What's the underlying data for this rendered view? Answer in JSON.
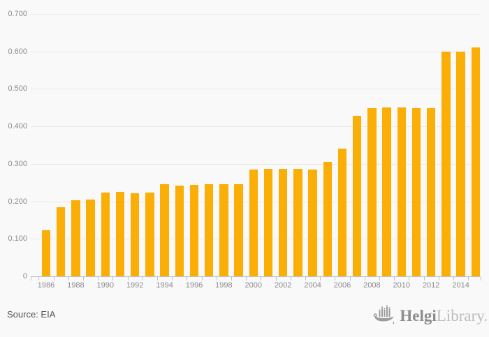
{
  "chart_data": {
    "type": "bar",
    "title": "",
    "xlabel": "",
    "ylabel": "",
    "categories": [
      "1986",
      "1987",
      "1988",
      "1989",
      "1990",
      "1991",
      "1992",
      "1993",
      "1994",
      "1995",
      "1996",
      "1997",
      "1998",
      "1999",
      "2000",
      "2001",
      "2002",
      "2003",
      "2004",
      "2005",
      "2006",
      "2007",
      "2008",
      "2009",
      "2010",
      "2011",
      "2012",
      "2013",
      "2014",
      "2015"
    ],
    "values": [
      0.122,
      0.184,
      0.203,
      0.205,
      0.223,
      0.225,
      0.222,
      0.224,
      0.246,
      0.242,
      0.244,
      0.245,
      0.245,
      0.245,
      0.285,
      0.287,
      0.287,
      0.287,
      0.285,
      0.306,
      0.34,
      0.428,
      0.449,
      0.45,
      0.45,
      0.448,
      0.448,
      0.599,
      0.6,
      0.611
    ],
    "ylim": [
      0,
      0.7
    ],
    "yticks": [
      {
        "label": "0.700",
        "value": 0.7
      },
      {
        "label": "0.600",
        "value": 0.6
      },
      {
        "label": "0.500",
        "value": 0.5
      },
      {
        "label": "0.400",
        "value": 0.4
      },
      {
        "label": "0.300",
        "value": 0.3
      },
      {
        "label": "0.200",
        "value": 0.2
      },
      {
        "label": "0.100",
        "value": 0.1
      },
      {
        "label": "0",
        "value": 0
      }
    ],
    "xtick_labels": [
      "1986",
      "1988",
      "1990",
      "1992",
      "1994",
      "1996",
      "1998",
      "2000",
      "2002",
      "2004",
      "2006",
      "2008",
      "2010",
      "2012",
      "2014"
    ],
    "grid": true,
    "legend": "none",
    "bar_color": "#faae06"
  },
  "footer": {
    "source_label": "Source: EIA"
  },
  "branding": {
    "logo_text_primary": "Helgi",
    "logo_text_secondary": "Library.",
    "logo_icon": "viking-ship-icon",
    "logo_color_primary": "#8d8d8d",
    "logo_color_secondary": "#bdbdbd",
    "logo_icon_color": "#9d9d9d"
  },
  "colors": {
    "background": "#f9f9f9",
    "bar": "#faae06",
    "gridline": "#e9e9e9",
    "axis": "#b9c3d6",
    "tick_label": "#8a8a8a",
    "source_text": "#555555"
  }
}
